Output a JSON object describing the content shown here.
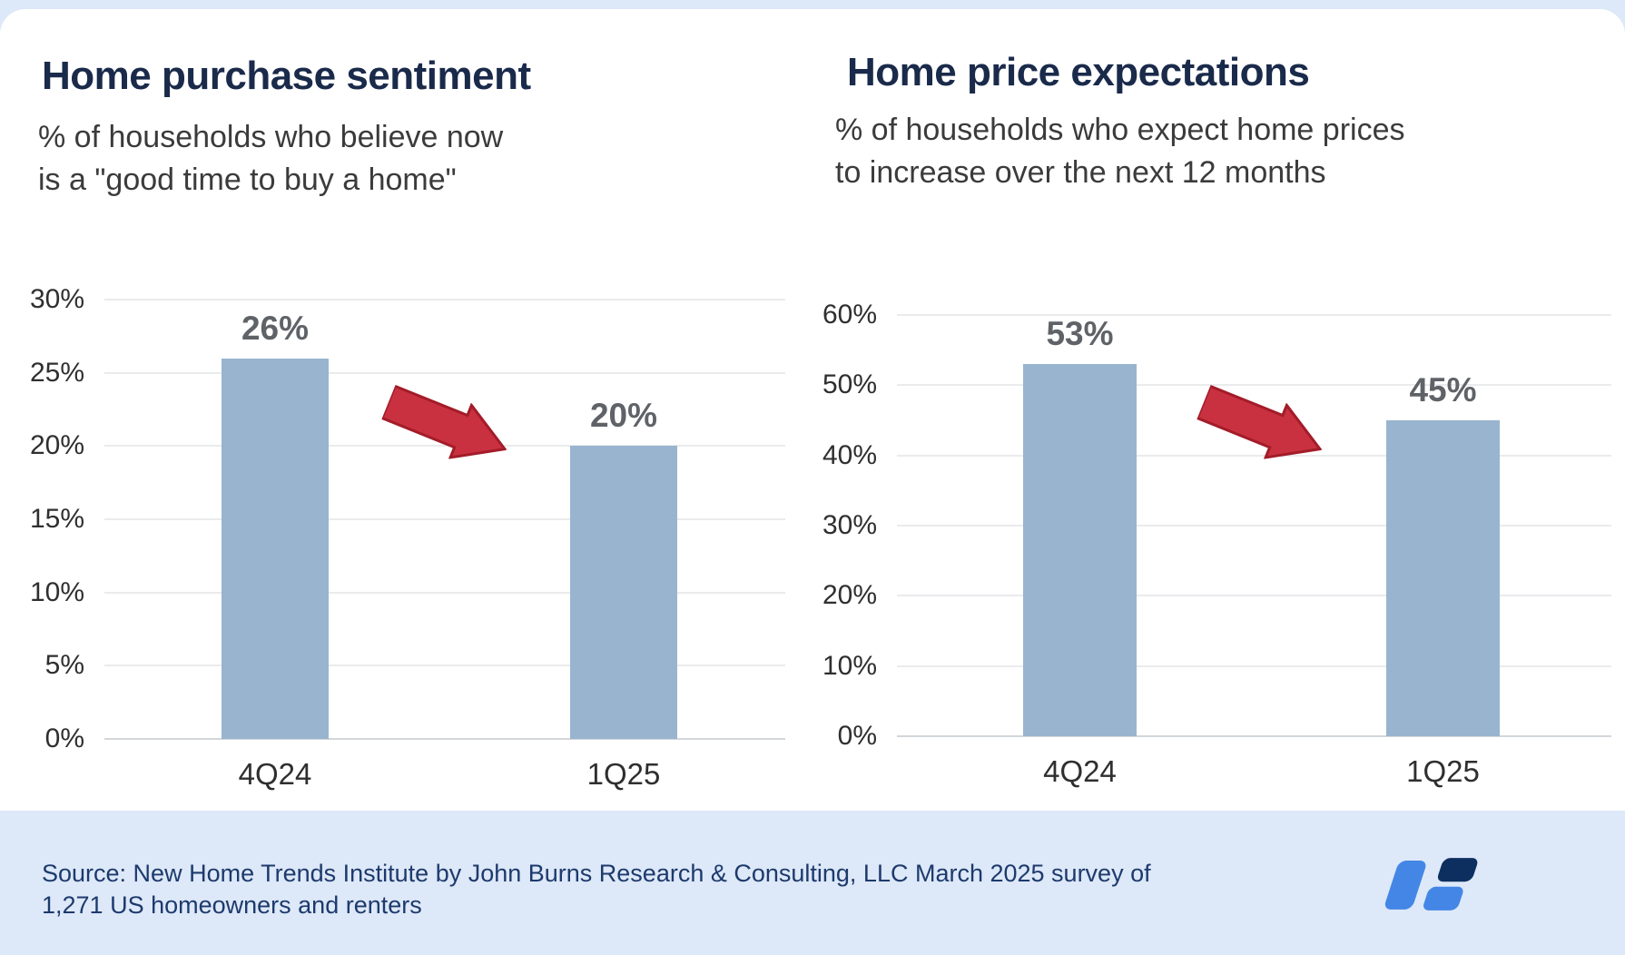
{
  "colors": {
    "navy": "#1a2a4a",
    "subtitle": "#3b3b3b",
    "tick": "#2f2f2f",
    "datalabel": "#5f6368",
    "bar": "#98b4cf",
    "grid": "#eaebed",
    "baseline": "#d3d6da",
    "arrow": "#c93140",
    "arrow-stroke": "#a31c29",
    "band": "#dde8f8",
    "footer-text": "#1d3a6d",
    "logo-blue": "#4486e6",
    "logo-navy": "#0d2f5f"
  },
  "chart_data": [
    {
      "type": "bar",
      "title": "Home purchase sentiment",
      "subtitle": "% of households who believe now\nis a \"good time to buy a home\"",
      "categories": [
        "4Q24",
        "1Q25"
      ],
      "values": [
        26,
        20
      ],
      "value_labels": [
        "26%",
        "20%"
      ],
      "ylim": [
        0,
        30
      ],
      "y_ticks": [
        "30%",
        "25%",
        "20%",
        "15%",
        "10%",
        "5%",
        "0%"
      ],
      "grid": true,
      "legend": "none",
      "annotation": "red block arrow pointing down-right between bars indicating decline"
    },
    {
      "type": "bar",
      "title": "Home price expectations",
      "subtitle": "% of households who expect home prices\nto increase over the next 12 months",
      "categories": [
        "4Q24",
        "1Q25"
      ],
      "values": [
        53,
        45
      ],
      "value_labels": [
        "53%",
        "45%"
      ],
      "ylim": [
        0,
        60
      ],
      "y_ticks": [
        "60%",
        "50%",
        "40%",
        "30%",
        "20%",
        "10%",
        "0%"
      ],
      "grid": true,
      "legend": "none",
      "annotation": "red block arrow pointing down-right between bars indicating decline"
    }
  ],
  "footer": {
    "source": "Source: New Home Trends Institute by John Burns Research & Consulting, LLC March 2025 survey of\n1,271 US homeowners and renters"
  },
  "logo": {
    "name": "John Burns Research & Consulting logo"
  }
}
